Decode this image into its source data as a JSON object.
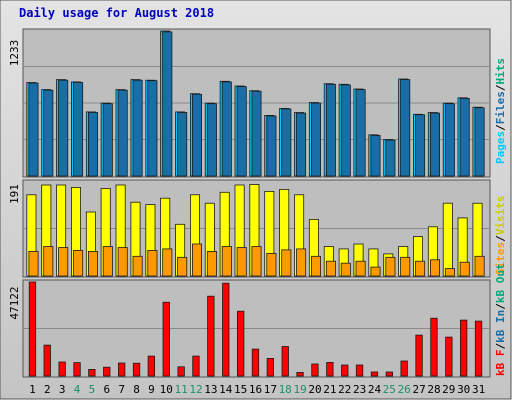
{
  "chart_data": [
    {
      "type": "bar",
      "panel": "pages-files-hits",
      "title": "Daily usage for August 2018",
      "y_max_label": "1233",
      "ylim": [
        0,
        1233
      ],
      "categories": [
        "1",
        "2",
        "3",
        "4",
        "5",
        "6",
        "7",
        "8",
        "9",
        "10",
        "11",
        "12",
        "13",
        "14",
        "15",
        "16",
        "17",
        "18",
        "19",
        "20",
        "21",
        "22",
        "23",
        "24",
        "25",
        "26",
        "27",
        "28",
        "29",
        "30",
        "31"
      ],
      "weekend_days": [
        "4",
        "5",
        "11",
        "12",
        "18",
        "19",
        "25",
        "26"
      ],
      "legend": [
        "Pages",
        "Files",
        "Hits"
      ],
      "legend_separator": "/",
      "series": [
        {
          "name": "Hits",
          "color": "#00ccff",
          "values": [
            795,
            735,
            820,
            800,
            545,
            620,
            735,
            820,
            815,
            1233,
            545,
            700,
            620,
            805,
            765,
            725,
            515,
            575,
            540,
            625,
            785,
            780,
            740,
            350,
            310,
            825,
            525,
            540,
            620,
            665,
            585
          ]
        },
        {
          "name": "Files",
          "color": "#1a6ea8",
          "values": [
            790,
            730,
            815,
            795,
            540,
            615,
            730,
            815,
            810,
            1225,
            540,
            695,
            615,
            800,
            760,
            720,
            510,
            570,
            535,
            620,
            780,
            775,
            735,
            345,
            305,
            820,
            520,
            535,
            615,
            660,
            580
          ]
        }
      ]
    },
    {
      "type": "bar",
      "panel": "visits-sites",
      "y_max_label": "191",
      "ylim": [
        0,
        191
      ],
      "categories": [
        "1",
        "2",
        "3",
        "4",
        "5",
        "6",
        "7",
        "8",
        "9",
        "10",
        "11",
        "12",
        "13",
        "14",
        "15",
        "16",
        "17",
        "18",
        "19",
        "20",
        "21",
        "22",
        "23",
        "24",
        "25",
        "26",
        "27",
        "28",
        "29",
        "30",
        "31"
      ],
      "legend": [
        "Visits",
        "Sites"
      ],
      "legend_separator": "/",
      "series": [
        {
          "name": "Visits",
          "color": "#ffff00",
          "values": [
            165,
            185,
            185,
            180,
            130,
            178,
            185,
            150,
            145,
            158,
            105,
            165,
            148,
            170,
            185,
            186,
            172,
            176,
            165,
            115,
            60,
            55,
            65,
            55,
            45,
            60,
            80,
            100,
            148,
            118,
            148
          ]
        },
        {
          "name": "Sites",
          "color": "#ff9900",
          "values": [
            50,
            60,
            58,
            52,
            50,
            60,
            58,
            40,
            52,
            55,
            38,
            65,
            50,
            60,
            58,
            60,
            46,
            53,
            55,
            40,
            30,
            26,
            30,
            18,
            38,
            38,
            30,
            33,
            15,
            28,
            40
          ]
        }
      ]
    },
    {
      "type": "bar",
      "panel": "kb",
      "y_max_label": "47122",
      "ylim": [
        0,
        47122
      ],
      "categories": [
        "1",
        "2",
        "3",
        "4",
        "5",
        "6",
        "7",
        "8",
        "9",
        "10",
        "11",
        "12",
        "13",
        "14",
        "15",
        "16",
        "17",
        "18",
        "19",
        "20",
        "21",
        "22",
        "23",
        "24",
        "25",
        "26",
        "27",
        "28",
        "29",
        "30",
        "31"
      ],
      "legend": [
        "kB F",
        "kB In",
        "kB Out"
      ],
      "legend_separator": "/",
      "series": [
        {
          "name": "kB F",
          "color": "#ff0000",
          "values": [
            47122,
            15500,
            7000,
            6700,
            3300,
            4400,
            6500,
            6400,
            10000,
            37000,
            4600,
            10000,
            40000,
            46500,
            32500,
            13500,
            8800,
            14800,
            1800,
            6000,
            6800,
            5500,
            5500,
            2000,
            2000,
            7500,
            20500,
            29000,
            19500,
            28000,
            27500
          ]
        }
      ]
    }
  ]
}
